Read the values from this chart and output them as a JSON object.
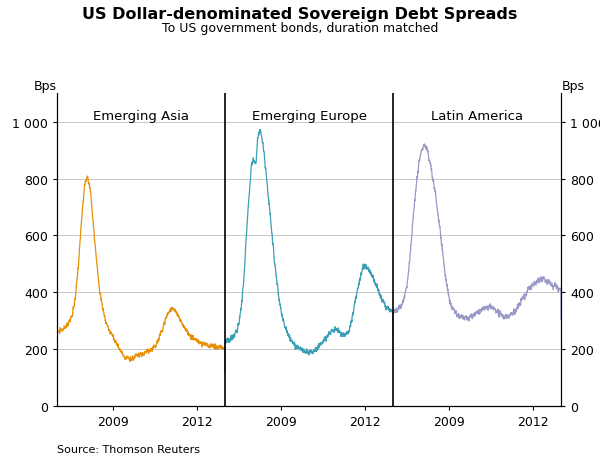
{
  "title": "US Dollar-denominated Sovereign Debt Spreads",
  "subtitle": "To US government bonds, duration matched",
  "ylabel_left": "Bps",
  "ylabel_right": "Bps",
  "source": "Source: Thomson Reuters",
  "panel_labels": [
    "Emerging Asia",
    "Emerging Europe",
    "Latin America"
  ],
  "ylim": [
    0,
    1100
  ],
  "yticks": [
    0,
    200,
    400,
    600,
    800,
    1000
  ],
  "ytick_labels": [
    "0",
    "200",
    "400",
    "600",
    "800",
    "1 000"
  ],
  "colors": {
    "asia": "#E8900A",
    "europe": "#3BA0B5",
    "latin": "#9A9AC8"
  },
  "start_year": 2007,
  "end_year": 2013,
  "panel_tick_years": [
    2009,
    2012
  ]
}
